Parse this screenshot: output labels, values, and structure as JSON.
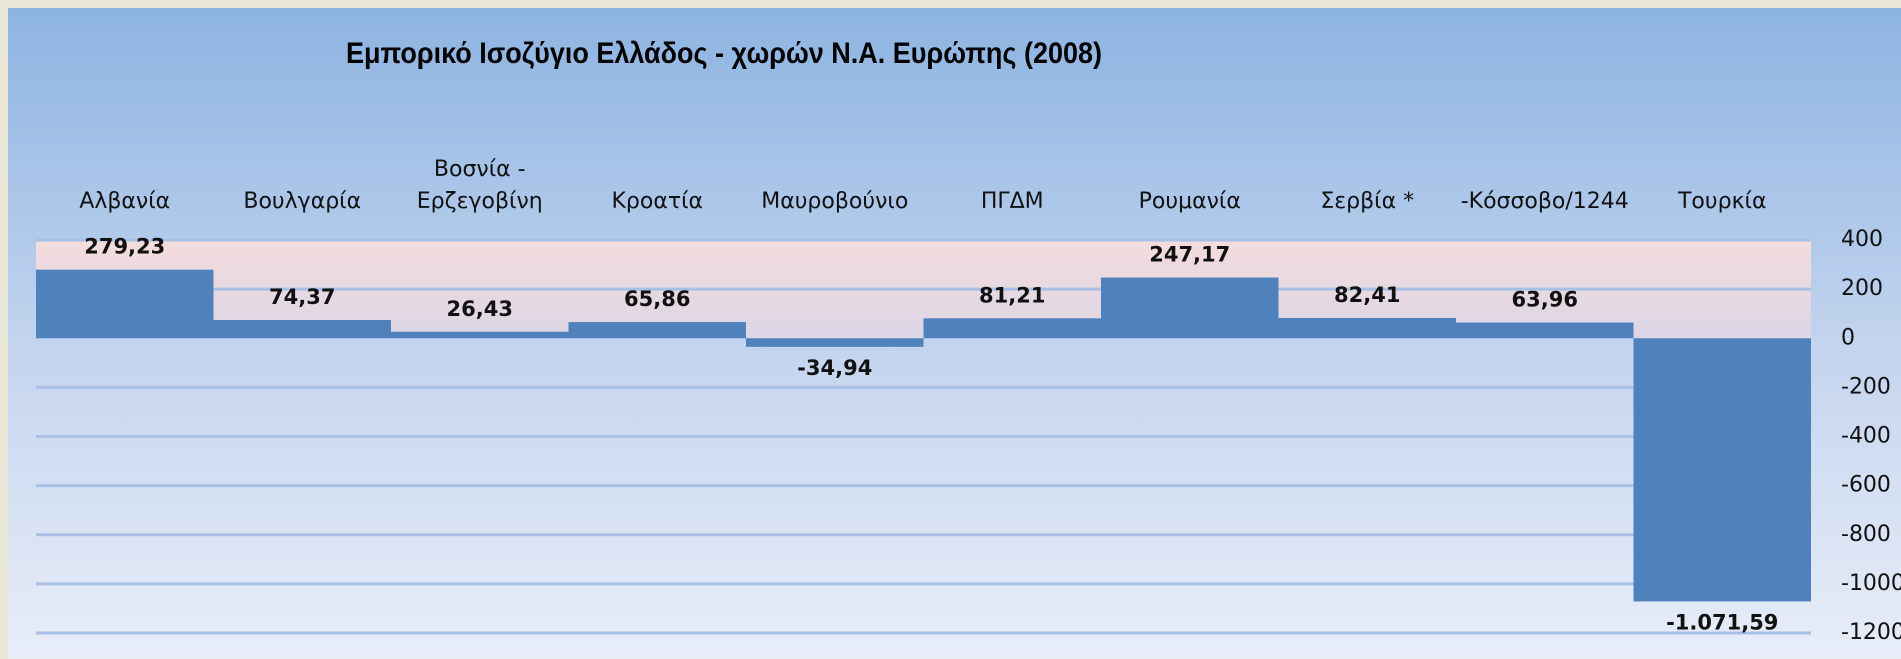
{
  "chart_data": {
    "type": "bar",
    "title": "Εμπορικό Ισοζύγιο Ελλάδος - χωρών Ν.Α. Ευρώπης  (2008)",
    "categories": [
      "Αλβανία",
      "Βουλγαρία",
      "Βοσνία - Ερζεγοβίνη",
      "Κροατία",
      "Μαυροβούνιο",
      "ΠΓΔΜ",
      "Ρουμανία",
      "Σερβία *",
      "-Κόσσοβο/1244",
      "Τουρκία"
    ],
    "values": [
      279.23,
      74.37,
      26.43,
      65.86,
      -34.94,
      81.21,
      247.17,
      82.41,
      63.96,
      -1071.59
    ],
    "value_labels": [
      "279,23",
      "74,37",
      "26,43",
      "65,86",
      "-34,94",
      "81,21",
      "247,17",
      "82,41",
      "63,96",
      "-1.071,59"
    ],
    "color": "#4f81bd",
    "ylim": [
      -1200,
      400
    ],
    "yticks": [
      400,
      200,
      0,
      -200,
      -400,
      -600,
      -800,
      -1000,
      -1200
    ],
    "grid": true
  }
}
